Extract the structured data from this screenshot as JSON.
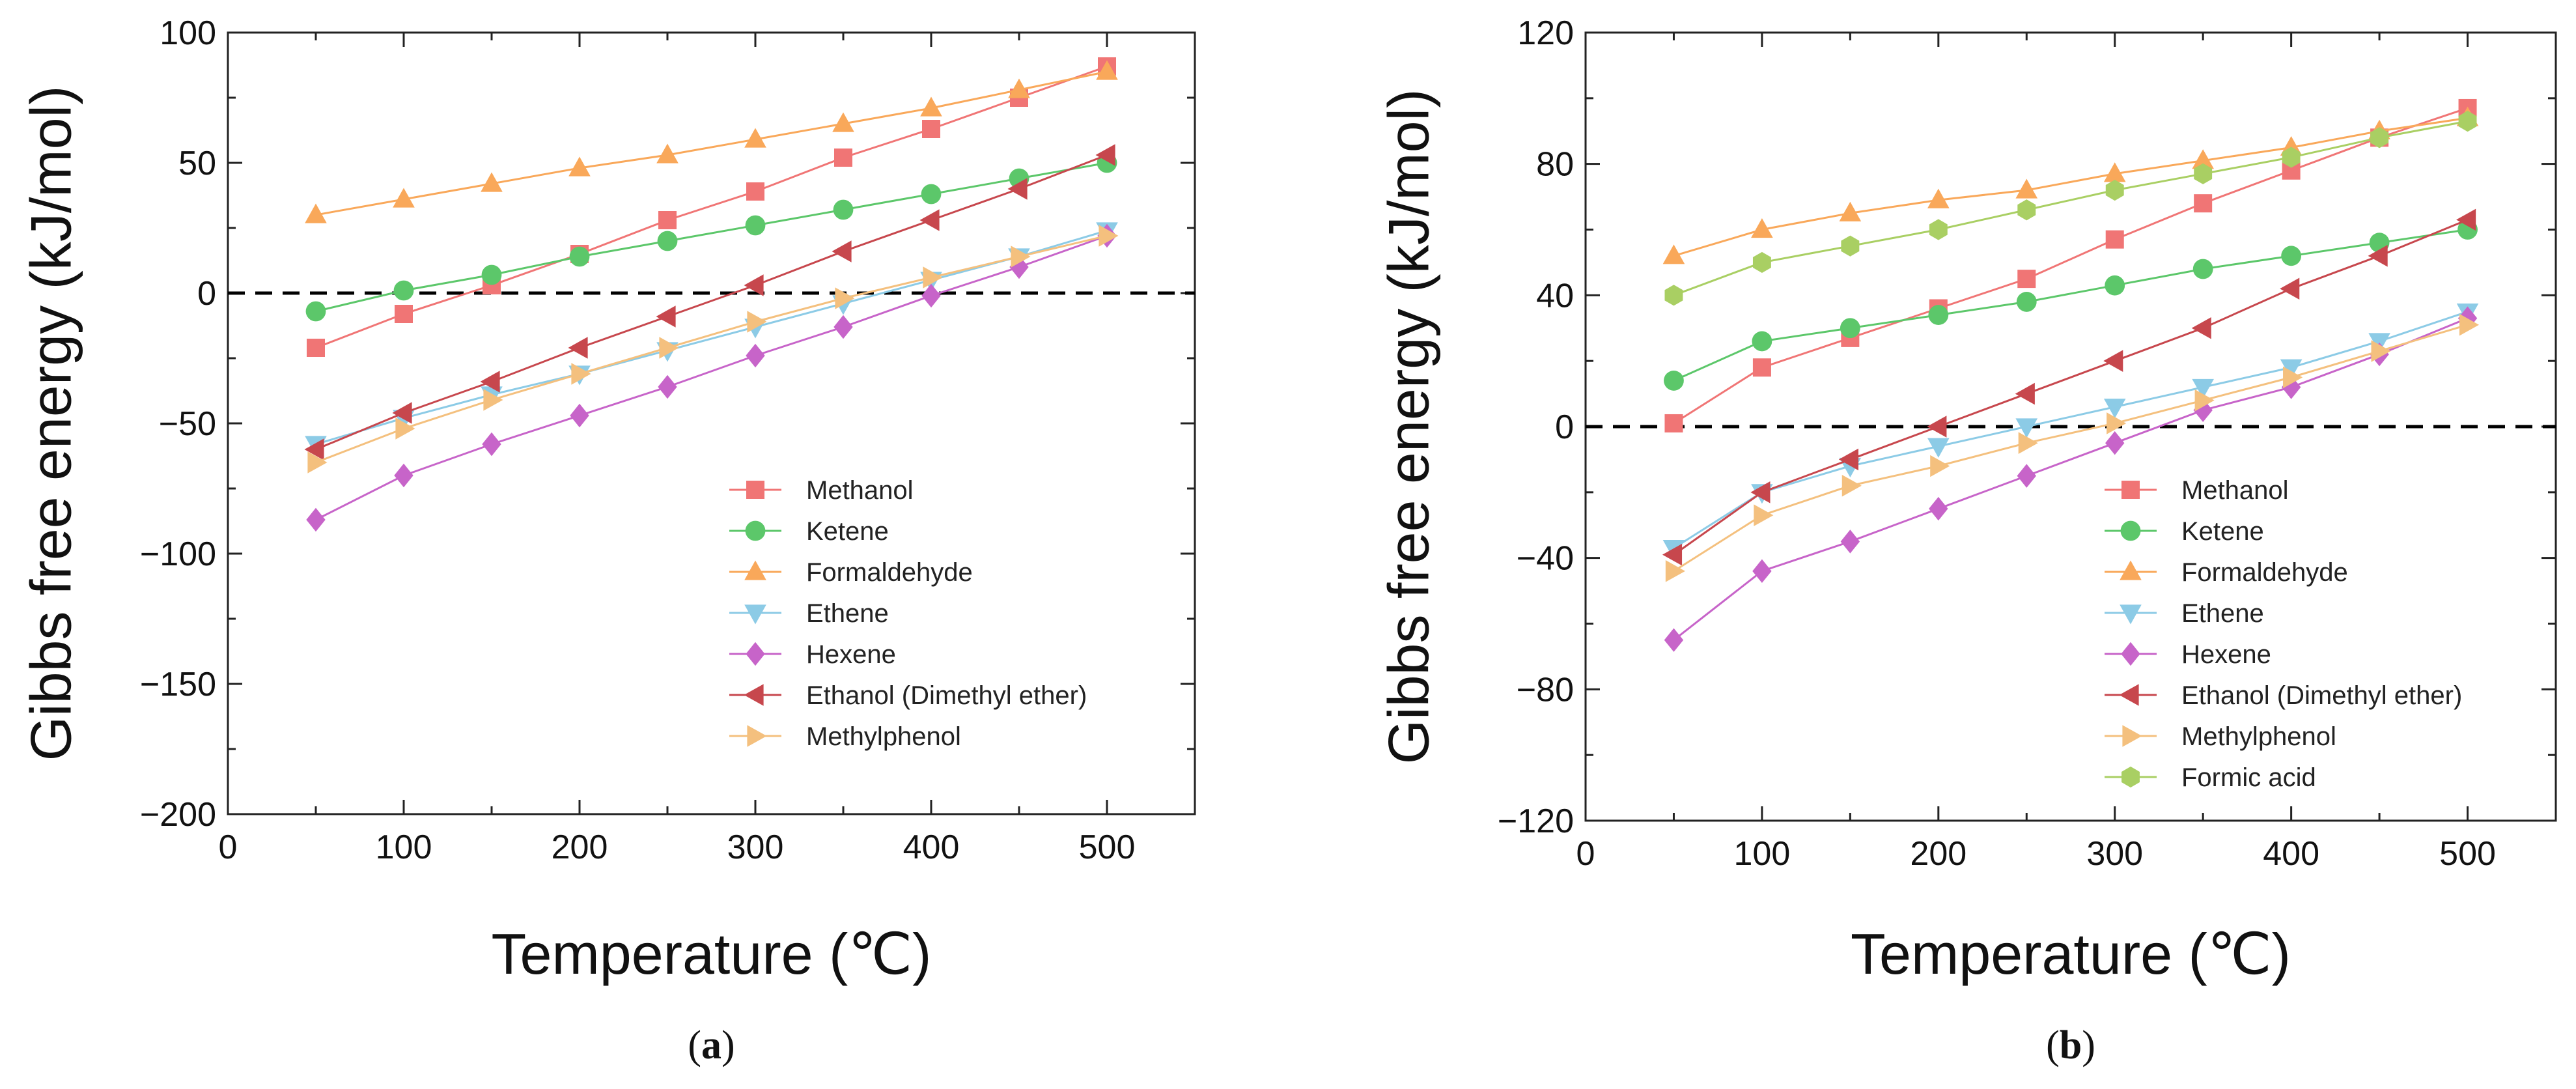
{
  "chart_data": [
    {
      "type": "line",
      "panel_label": "a",
      "xlabel": "Temperature (℃)",
      "ylabel": "Gibbs free energy (kJ/mol)",
      "xlim": [
        0,
        550
      ],
      "ylim": [
        -200,
        100
      ],
      "xticks": [
        0,
        100,
        200,
        300,
        400,
        500
      ],
      "yticks": [
        -200,
        -150,
        -100,
        -50,
        0,
        50,
        100
      ],
      "reference_line": {
        "y": 0,
        "style": "dashed"
      },
      "legend_position": "bottom-right",
      "series": [
        {
          "name": "Methanol",
          "marker": "square",
          "color": "#f07575",
          "x": [
            50,
            100,
            150,
            200,
            250,
            300,
            350,
            400,
            450,
            500
          ],
          "y": [
            -21,
            -8,
            3,
            15,
            28,
            39,
            52,
            63,
            75,
            87
          ]
        },
        {
          "name": "Ketene",
          "marker": "circle",
          "color": "#5cc76a",
          "x": [
            50,
            100,
            150,
            200,
            250,
            300,
            350,
            400,
            450,
            500
          ],
          "y": [
            -7,
            1,
            7,
            14,
            20,
            26,
            32,
            38,
            44,
            50
          ]
        },
        {
          "name": "Formaldehyde",
          "marker": "triangle-up",
          "color": "#f9a85a",
          "x": [
            50,
            100,
            150,
            200,
            250,
            300,
            350,
            400,
            450,
            500
          ],
          "y": [
            30,
            36,
            42,
            48,
            53,
            59,
            65,
            71,
            78,
            85
          ]
        },
        {
          "name": "Ethene",
          "marker": "triangle-down",
          "color": "#8ccbe6",
          "x": [
            50,
            100,
            150,
            200,
            250,
            300,
            350,
            400,
            450,
            500
          ],
          "y": [
            -58,
            -48,
            -39,
            -31,
            -22,
            -13,
            -4,
            5,
            14,
            24
          ]
        },
        {
          "name": "Hexene",
          "marker": "diamond",
          "color": "#c764c9",
          "x": [
            50,
            100,
            150,
            200,
            250,
            300,
            350,
            400,
            450,
            500
          ],
          "y": [
            -87,
            -70,
            -58,
            -47,
            -36,
            -24,
            -13,
            -1,
            10,
            22
          ]
        },
        {
          "name": "Ethanol (Dimethyl ether)",
          "marker": "triangle-left",
          "color": "#c7474d",
          "x": [
            50,
            100,
            150,
            200,
            250,
            300,
            350,
            400,
            450,
            500
          ],
          "y": [
            -60,
            -46,
            -34,
            -21,
            -9,
            3,
            16,
            28,
            40,
            53
          ]
        },
        {
          "name": "Methylphenol",
          "marker": "triangle-right",
          "color": "#f4c07e",
          "x": [
            50,
            100,
            150,
            200,
            250,
            300,
            350,
            400,
            450,
            500
          ],
          "y": [
            -65,
            -52,
            -41,
            -31,
            -21,
            -11,
            -2,
            6,
            14,
            22
          ]
        }
      ]
    },
    {
      "type": "line",
      "panel_label": "b",
      "xlabel": "Temperature (℃)",
      "ylabel": "Gibbs free energy (kJ/mol)",
      "xlim": [
        0,
        550
      ],
      "ylim": [
        -120,
        120
      ],
      "xticks": [
        0,
        100,
        200,
        300,
        400,
        500
      ],
      "yticks": [
        -120,
        -80,
        -40,
        0,
        40,
        80,
        120
      ],
      "reference_line": {
        "y": 0,
        "style": "dashed"
      },
      "legend_position": "bottom-right",
      "series": [
        {
          "name": "Methanol",
          "marker": "square",
          "color": "#f07575",
          "x": [
            50,
            100,
            150,
            200,
            250,
            300,
            350,
            400,
            450,
            500
          ],
          "y": [
            1,
            18,
            27,
            36,
            45,
            57,
            68,
            78,
            88,
            97
          ]
        },
        {
          "name": "Ketene",
          "marker": "circle",
          "color": "#5cc76a",
          "x": [
            50,
            100,
            150,
            200,
            250,
            300,
            350,
            400,
            450,
            500
          ],
          "y": [
            14,
            26,
            30,
            34,
            38,
            43,
            48,
            52,
            56,
            60
          ]
        },
        {
          "name": "Formaldehyde",
          "marker": "triangle-up",
          "color": "#f9a85a",
          "x": [
            50,
            100,
            150,
            200,
            250,
            300,
            350,
            400,
            450,
            500
          ],
          "y": [
            52,
            60,
            65,
            69,
            72,
            77,
            81,
            85,
            90,
            94
          ]
        },
        {
          "name": "Ethene",
          "marker": "triangle-down",
          "color": "#8ccbe6",
          "x": [
            50,
            100,
            150,
            200,
            250,
            300,
            350,
            400,
            450,
            500
          ],
          "y": [
            -37,
            -20,
            -12,
            -6,
            0,
            6,
            12,
            18,
            26,
            35
          ]
        },
        {
          "name": "Hexene",
          "marker": "diamond",
          "color": "#c764c9",
          "x": [
            50,
            100,
            150,
            200,
            250,
            300,
            350,
            400,
            450,
            500
          ],
          "y": [
            -65,
            -44,
            -35,
            -25,
            -15,
            -5,
            5,
            12,
            22,
            33
          ]
        },
        {
          "name": "Ethanol (Dimethyl ether)",
          "marker": "triangle-left",
          "color": "#c7474d",
          "x": [
            50,
            100,
            150,
            200,
            250,
            300,
            350,
            400,
            450,
            500
          ],
          "y": [
            -39,
            -20,
            -10,
            0,
            10,
            20,
            30,
            42,
            52,
            63
          ]
        },
        {
          "name": "Methylphenol",
          "marker": "triangle-right",
          "color": "#f4c07e",
          "x": [
            50,
            100,
            150,
            200,
            250,
            300,
            350,
            400,
            450,
            500
          ],
          "y": [
            -44,
            -27,
            -18,
            -12,
            -5,
            1,
            8,
            15,
            23,
            31
          ]
        },
        {
          "name": "Formic acid",
          "marker": "hexagon",
          "color": "#a9cf63",
          "x": [
            50,
            100,
            150,
            200,
            250,
            300,
            350,
            400,
            450,
            500
          ],
          "y": [
            40,
            50,
            55,
            60,
            66,
            72,
            77,
            82,
            88,
            93
          ]
        }
      ]
    }
  ]
}
